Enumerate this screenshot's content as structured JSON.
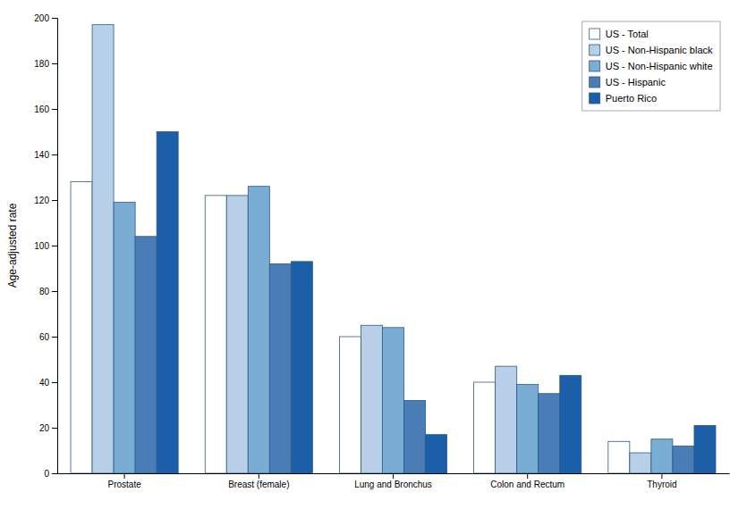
{
  "chart_data": {
    "type": "bar",
    "categories": [
      "Prostate",
      "Breast (female)",
      "Lung and Bronchus",
      "Colon and Rectum",
      "Thyroid"
    ],
    "series": [
      {
        "name": "US - Total",
        "color": "#ffffff",
        "values": [
          128,
          122,
          60,
          40,
          14
        ]
      },
      {
        "name": "US - Non-Hispanic black",
        "color": "#b8cfe8",
        "values": [
          197,
          122,
          65,
          47,
          9
        ]
      },
      {
        "name": "US - Non-Hispanic white",
        "color": "#7aadd4",
        "values": [
          119,
          126,
          64,
          39,
          15
        ]
      },
      {
        "name": "US - Hispanic",
        "color": "#4a7db5",
        "values": [
          104,
          92,
          32,
          35,
          12
        ]
      },
      {
        "name": "Puerto Rico",
        "color": "#1a5fa8",
        "values": [
          150,
          93,
          17,
          43,
          21
        ]
      }
    ],
    "ylabel": "Age-adjusted rate",
    "ylim": [
      0,
      200
    ],
    "yticks": [
      0,
      20,
      40,
      60,
      80,
      100,
      120,
      140,
      160,
      180,
      200
    ],
    "grid": false,
    "legend": "upper right"
  }
}
